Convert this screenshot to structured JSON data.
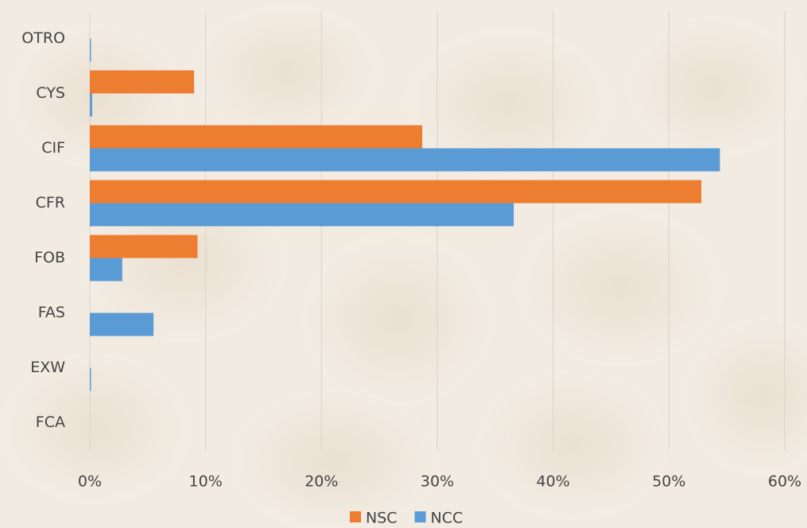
{
  "chart_data": {
    "type": "barh",
    "categories": [
      "OTRO",
      "CYS",
      "CIF",
      "CFR",
      "FOB",
      "FAS",
      "EXW",
      "FCA"
    ],
    "series": [
      {
        "name": "NSC",
        "color": "#ed7d31",
        "values": [
          0,
          9.0,
          28.7,
          52.8,
          9.3,
          0,
          0,
          0
        ]
      },
      {
        "name": "NCC",
        "color": "#5b9bd5",
        "values": [
          0.1,
          0.2,
          54.4,
          36.6,
          2.8,
          5.5,
          0.1,
          0
        ]
      }
    ],
    "xlim": [
      0,
      60
    ],
    "xticks": [
      {
        "value": 0,
        "label": "0%"
      },
      {
        "value": 10,
        "label": "10%"
      },
      {
        "value": 20,
        "label": "20%"
      },
      {
        "value": 30,
        "label": "30%"
      },
      {
        "value": 40,
        "label": "40%"
      },
      {
        "value": 50,
        "label": "50%"
      },
      {
        "value": 60,
        "label": "60%"
      }
    ],
    "grid": true,
    "legend": "bottom"
  }
}
